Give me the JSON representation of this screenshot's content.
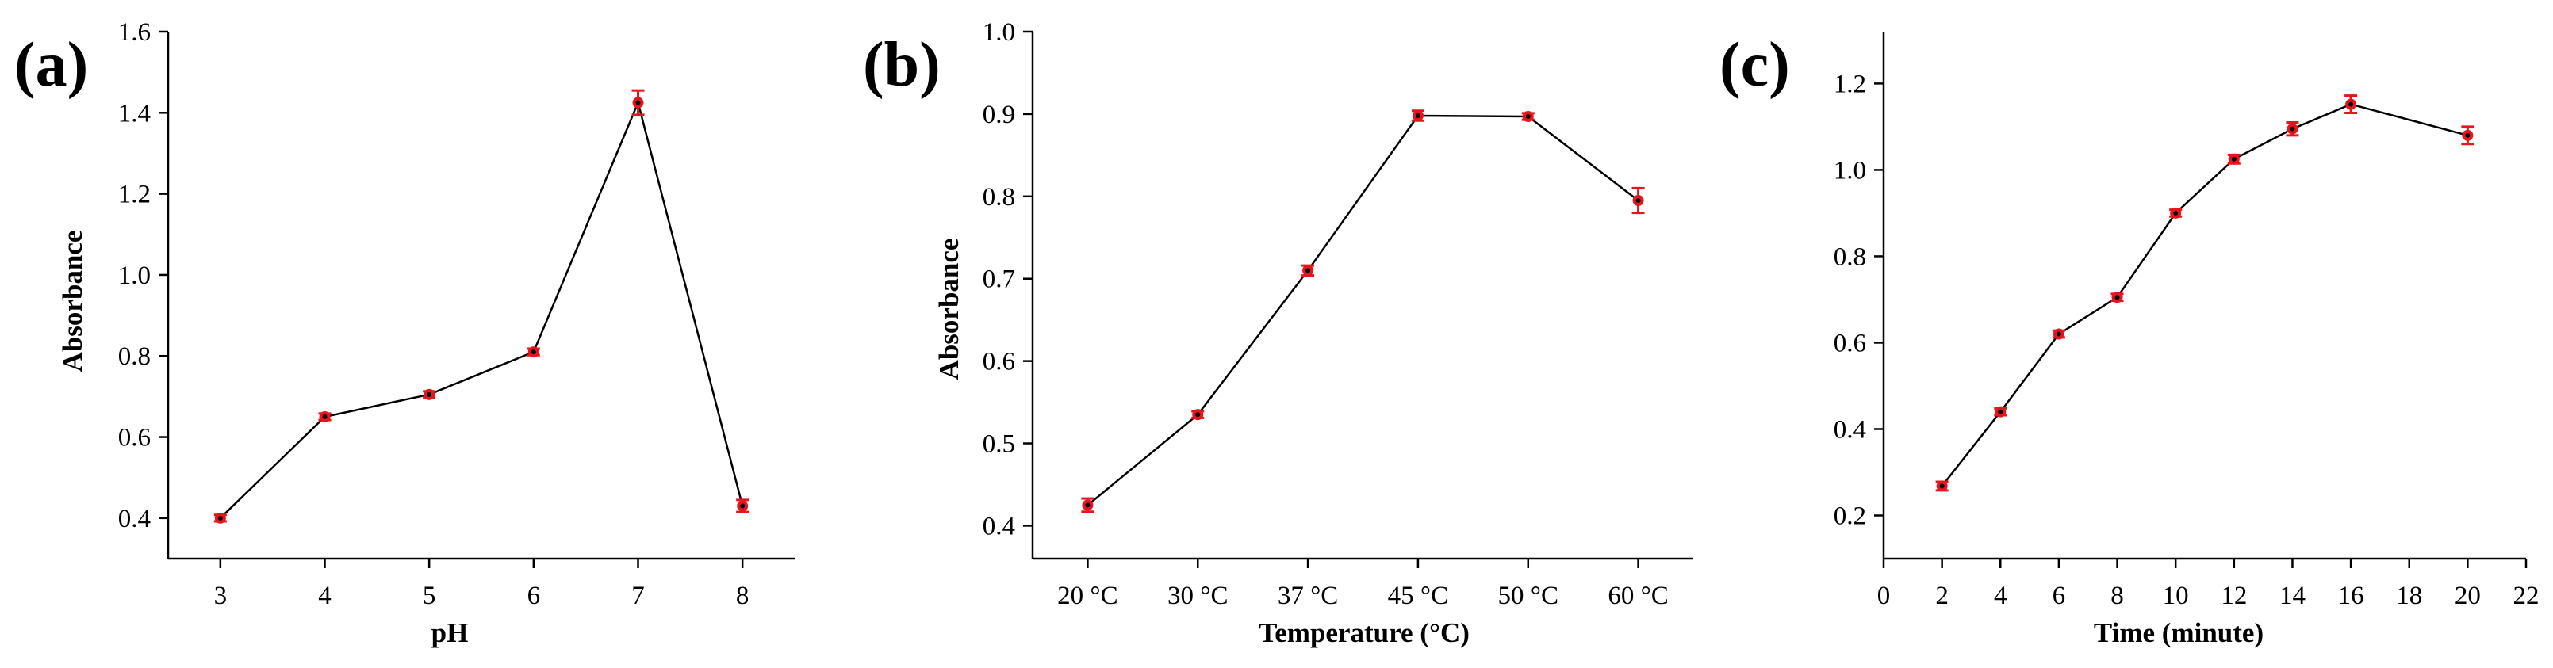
{
  "colors": {
    "line": "#000000",
    "marker": "#e8141c",
    "marker_center": "#000000",
    "error_bar": "#e8141c",
    "axis": "#000000"
  },
  "chart_data": [
    {
      "type": "line",
      "panel_label": "(a)",
      "title": "",
      "xlabel": "pH",
      "ylabel": "Absorbance",
      "x": [
        3,
        4,
        5,
        6,
        7,
        8
      ],
      "x_tick_labels": [
        "3",
        "4",
        "5",
        "6",
        "7",
        "8"
      ],
      "y_tick_labels": [
        "0.4",
        "0.6",
        "0.8",
        "1.0",
        "1.2",
        "1.4",
        "1.6"
      ],
      "y_ticks": [
        0.4,
        0.6,
        0.8,
        1.0,
        1.2,
        1.4,
        1.6
      ],
      "xlim": [
        2.5,
        8.5
      ],
      "ylim": [
        0.3,
        1.6
      ],
      "series": [
        {
          "name": "Absorbance",
          "values": [
            0.4,
            0.65,
            0.705,
            0.81,
            1.425,
            0.43
          ],
          "errors": [
            0.008,
            0.008,
            0.008,
            0.008,
            0.03,
            0.015
          ]
        }
      ],
      "grid": false
    },
    {
      "type": "line",
      "panel_label": "(b)",
      "title": "",
      "xlabel": "Temperature (°C)",
      "ylabel": "Absorbance",
      "x": [
        0,
        1,
        2,
        3,
        4,
        5
      ],
      "x_tick_labels": [
        "20 °C",
        "30 °C",
        "37 °C",
        "45 °C",
        "50 °C",
        "60 °C"
      ],
      "y_tick_labels": [
        "0.4",
        "0.5",
        "0.6",
        "0.7",
        "0.8",
        "0.9",
        "1.0"
      ],
      "y_ticks": [
        0.4,
        0.5,
        0.6,
        0.7,
        0.8,
        0.9,
        1.0
      ],
      "xlim": [
        -0.5,
        5.5
      ],
      "ylim": [
        0.36,
        1.0
      ],
      "series": [
        {
          "name": "Absorbance",
          "values": [
            0.425,
            0.535,
            0.71,
            0.898,
            0.897,
            0.795
          ],
          "errors": [
            0.008,
            0.004,
            0.006,
            0.006,
            0.004,
            0.015
          ]
        }
      ],
      "grid": false
    },
    {
      "type": "line",
      "panel_label": "(c)",
      "title": "",
      "xlabel": "Time (minute)",
      "ylabel": "",
      "x": [
        2,
        4,
        6,
        8,
        10,
        12,
        14,
        16,
        20
      ],
      "x_ticks": [
        0,
        2,
        4,
        6,
        8,
        10,
        12,
        14,
        16,
        18,
        20,
        22
      ],
      "x_tick_labels": [
        "0",
        "2",
        "4",
        "6",
        "8",
        "10",
        "12",
        "14",
        "16",
        "18",
        "20",
        "22"
      ],
      "y_tick_labels": [
        "0.2",
        "0.4",
        "0.6",
        "0.8",
        "1.0",
        "1.2"
      ],
      "y_ticks": [
        0.2,
        0.4,
        0.6,
        0.8,
        1.0,
        1.2
      ],
      "xlim": [
        0,
        22
      ],
      "ylim": [
        0.1,
        1.32
      ],
      "series": [
        {
          "name": "Absorbance",
          "values": [
            0.268,
            0.44,
            0.62,
            0.705,
            0.9,
            1.025,
            1.095,
            1.152,
            1.08
          ],
          "errors": [
            0.01,
            0.008,
            0.008,
            0.008,
            0.008,
            0.01,
            0.015,
            0.02,
            0.02
          ]
        }
      ],
      "grid": false
    }
  ]
}
